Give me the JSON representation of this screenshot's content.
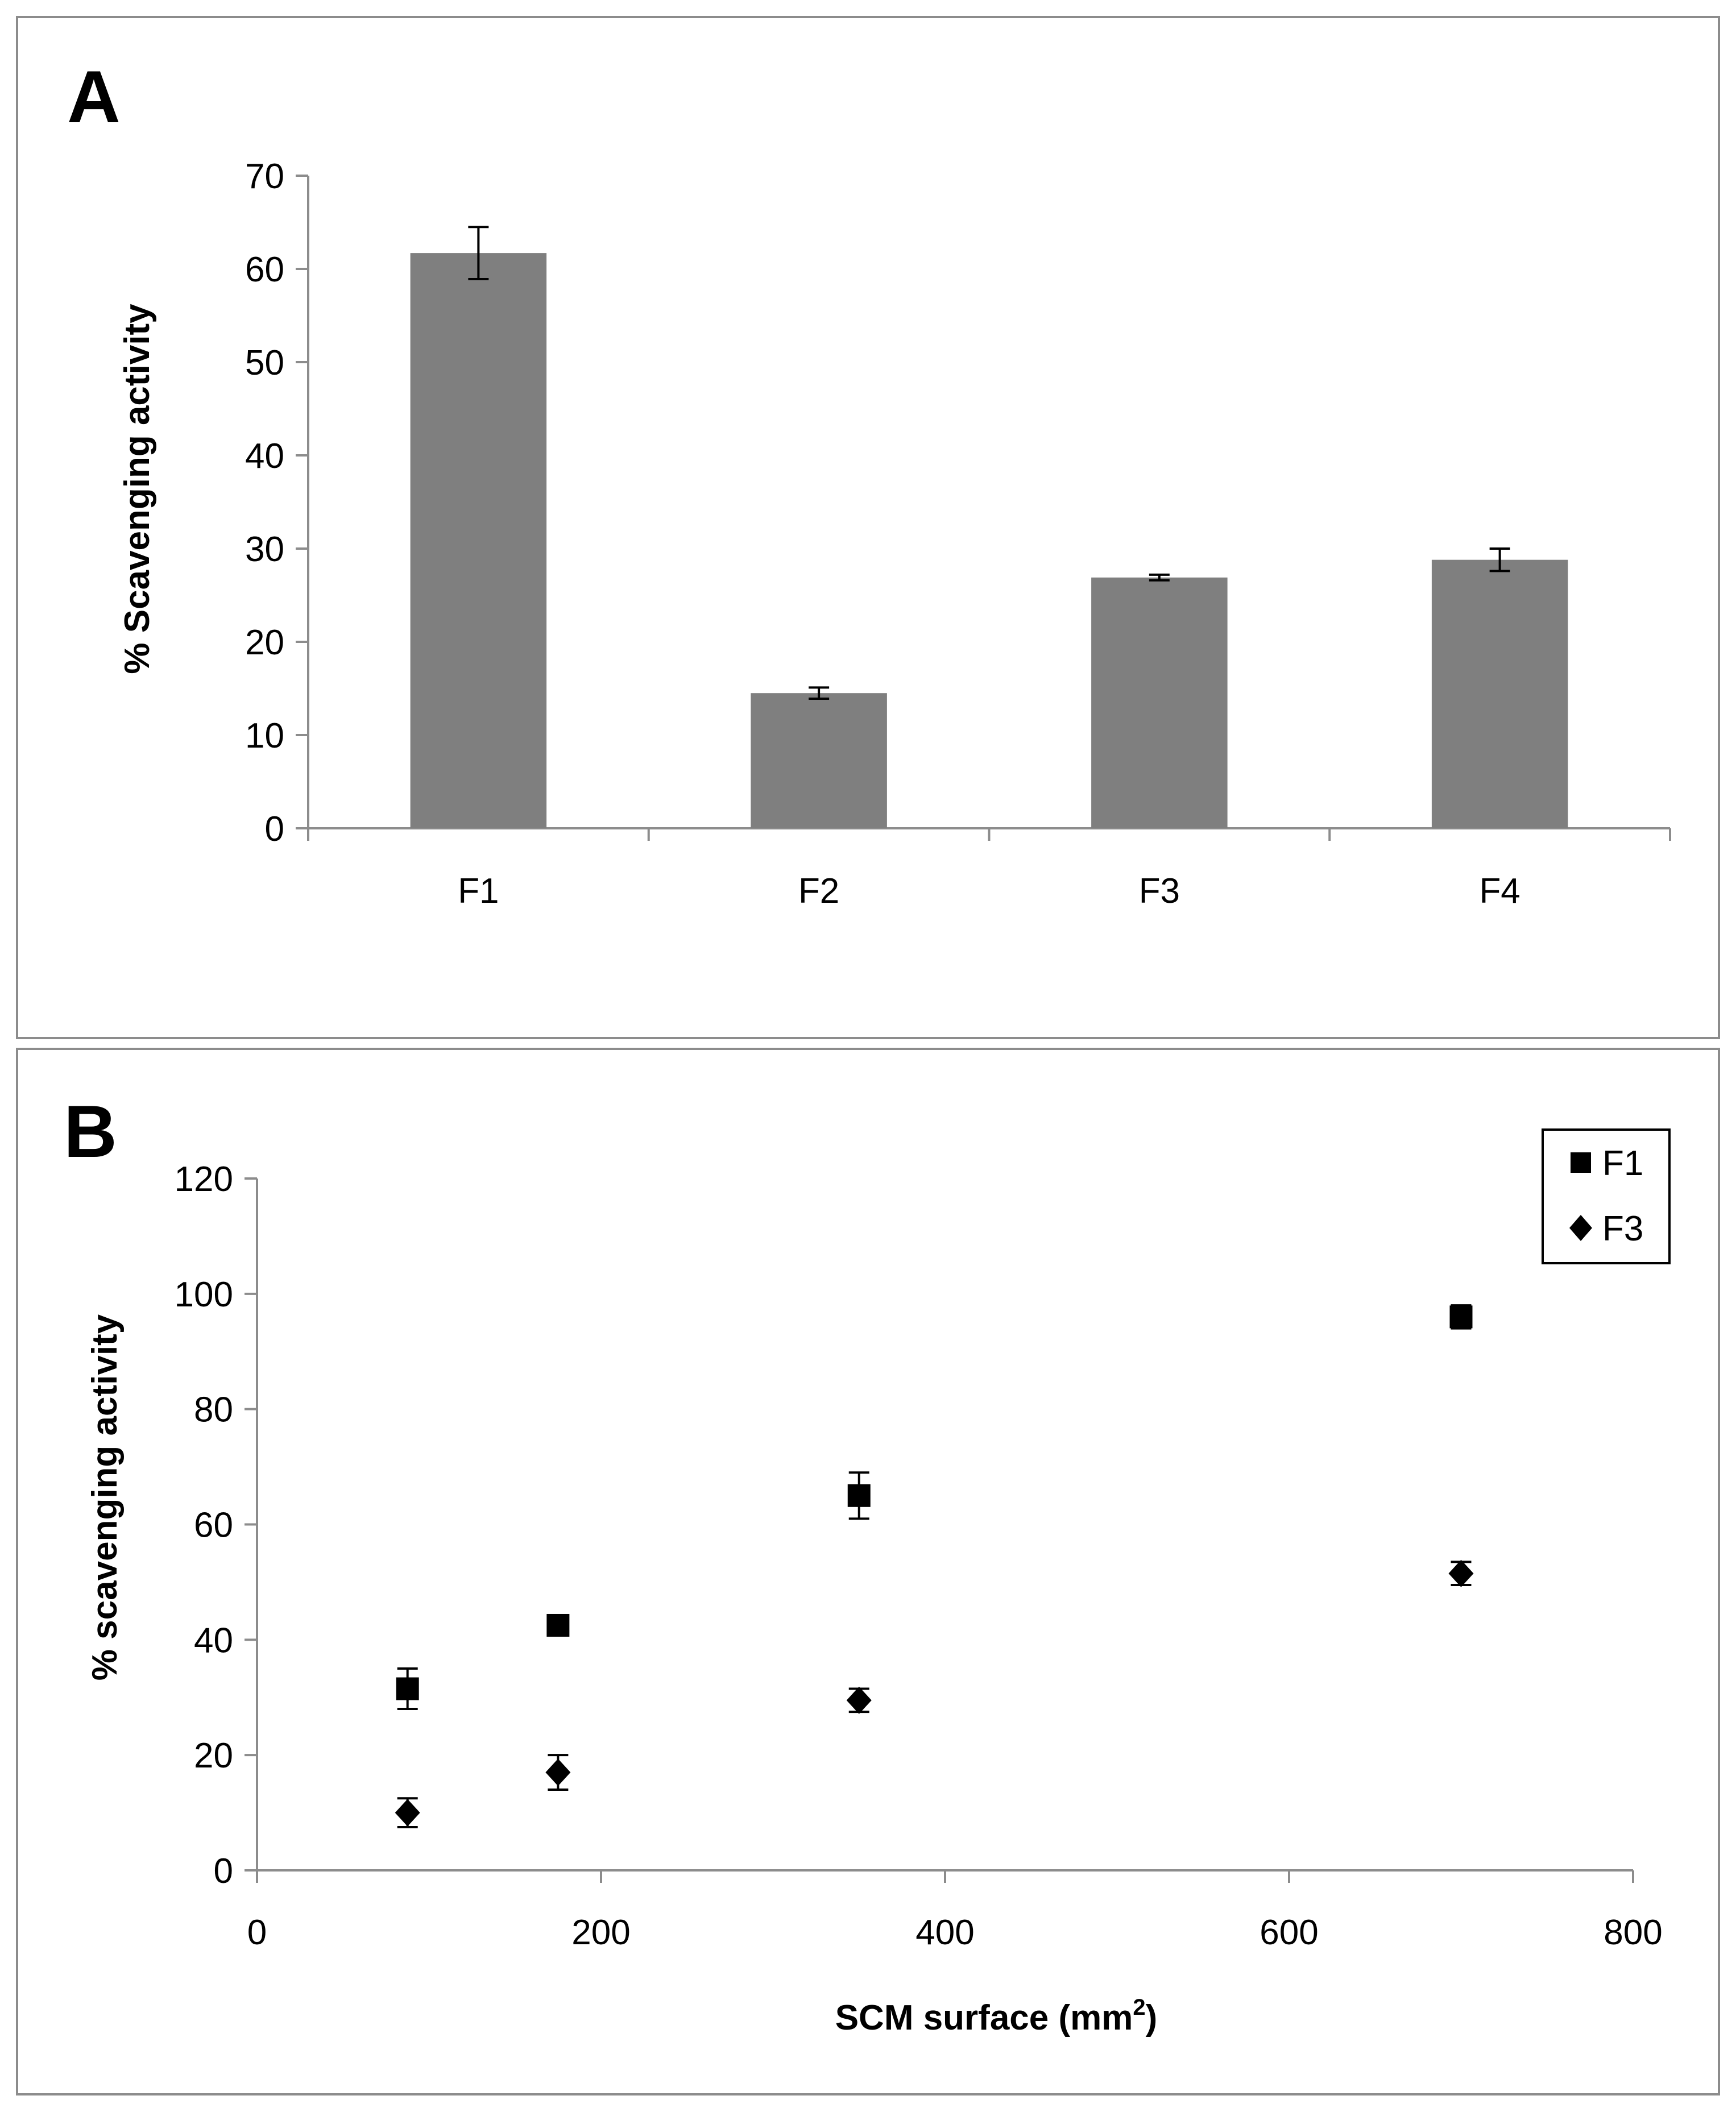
{
  "colors": {
    "bar": "#7f7f7f",
    "axis": "#8c8c8c",
    "marker": "#000000",
    "frame": "#8c8c8c"
  },
  "chart_data": [
    {
      "panel_label": "A",
      "type": "bar",
      "title": "",
      "xlabel": "",
      "ylabel": "% Scavenging activity",
      "categories": [
        "F1",
        "F2",
        "F3",
        "F4"
      ],
      "values": [
        61.7,
        14.5,
        26.9,
        28.8
      ],
      "errors": [
        2.8,
        0.6,
        0.3,
        1.2
      ],
      "ylim": [
        0,
        70
      ],
      "yticks": [
        0,
        10,
        20,
        30,
        40,
        50,
        60,
        70
      ],
      "grid": false
    },
    {
      "panel_label": "B",
      "type": "scatter",
      "title": "",
      "xlabel": "SCM surface (mm",
      "xlabel_sup": "2",
      "xlabel_end": ")",
      "ylabel": "% scavenging activity",
      "xlim": [
        0,
        800
      ],
      "ylim": [
        0,
        120
      ],
      "xticks": [
        0,
        200,
        400,
        600,
        800
      ],
      "yticks": [
        0,
        20,
        40,
        60,
        80,
        100,
        120
      ],
      "legend_position": "top-right",
      "grid": false,
      "series": [
        {
          "name": "F1",
          "marker": "square",
          "x": [
            87.5,
            175,
            350,
            700
          ],
          "y": [
            31.5,
            42.5,
            65,
            96
          ],
          "errors": [
            3.5,
            1.5,
            4,
            2
          ]
        },
        {
          "name": "F3",
          "marker": "diamond",
          "x": [
            87.5,
            175,
            350,
            700
          ],
          "y": [
            10,
            17,
            29.5,
            51.5
          ],
          "errors": [
            2.5,
            3,
            2,
            2
          ]
        }
      ]
    }
  ]
}
